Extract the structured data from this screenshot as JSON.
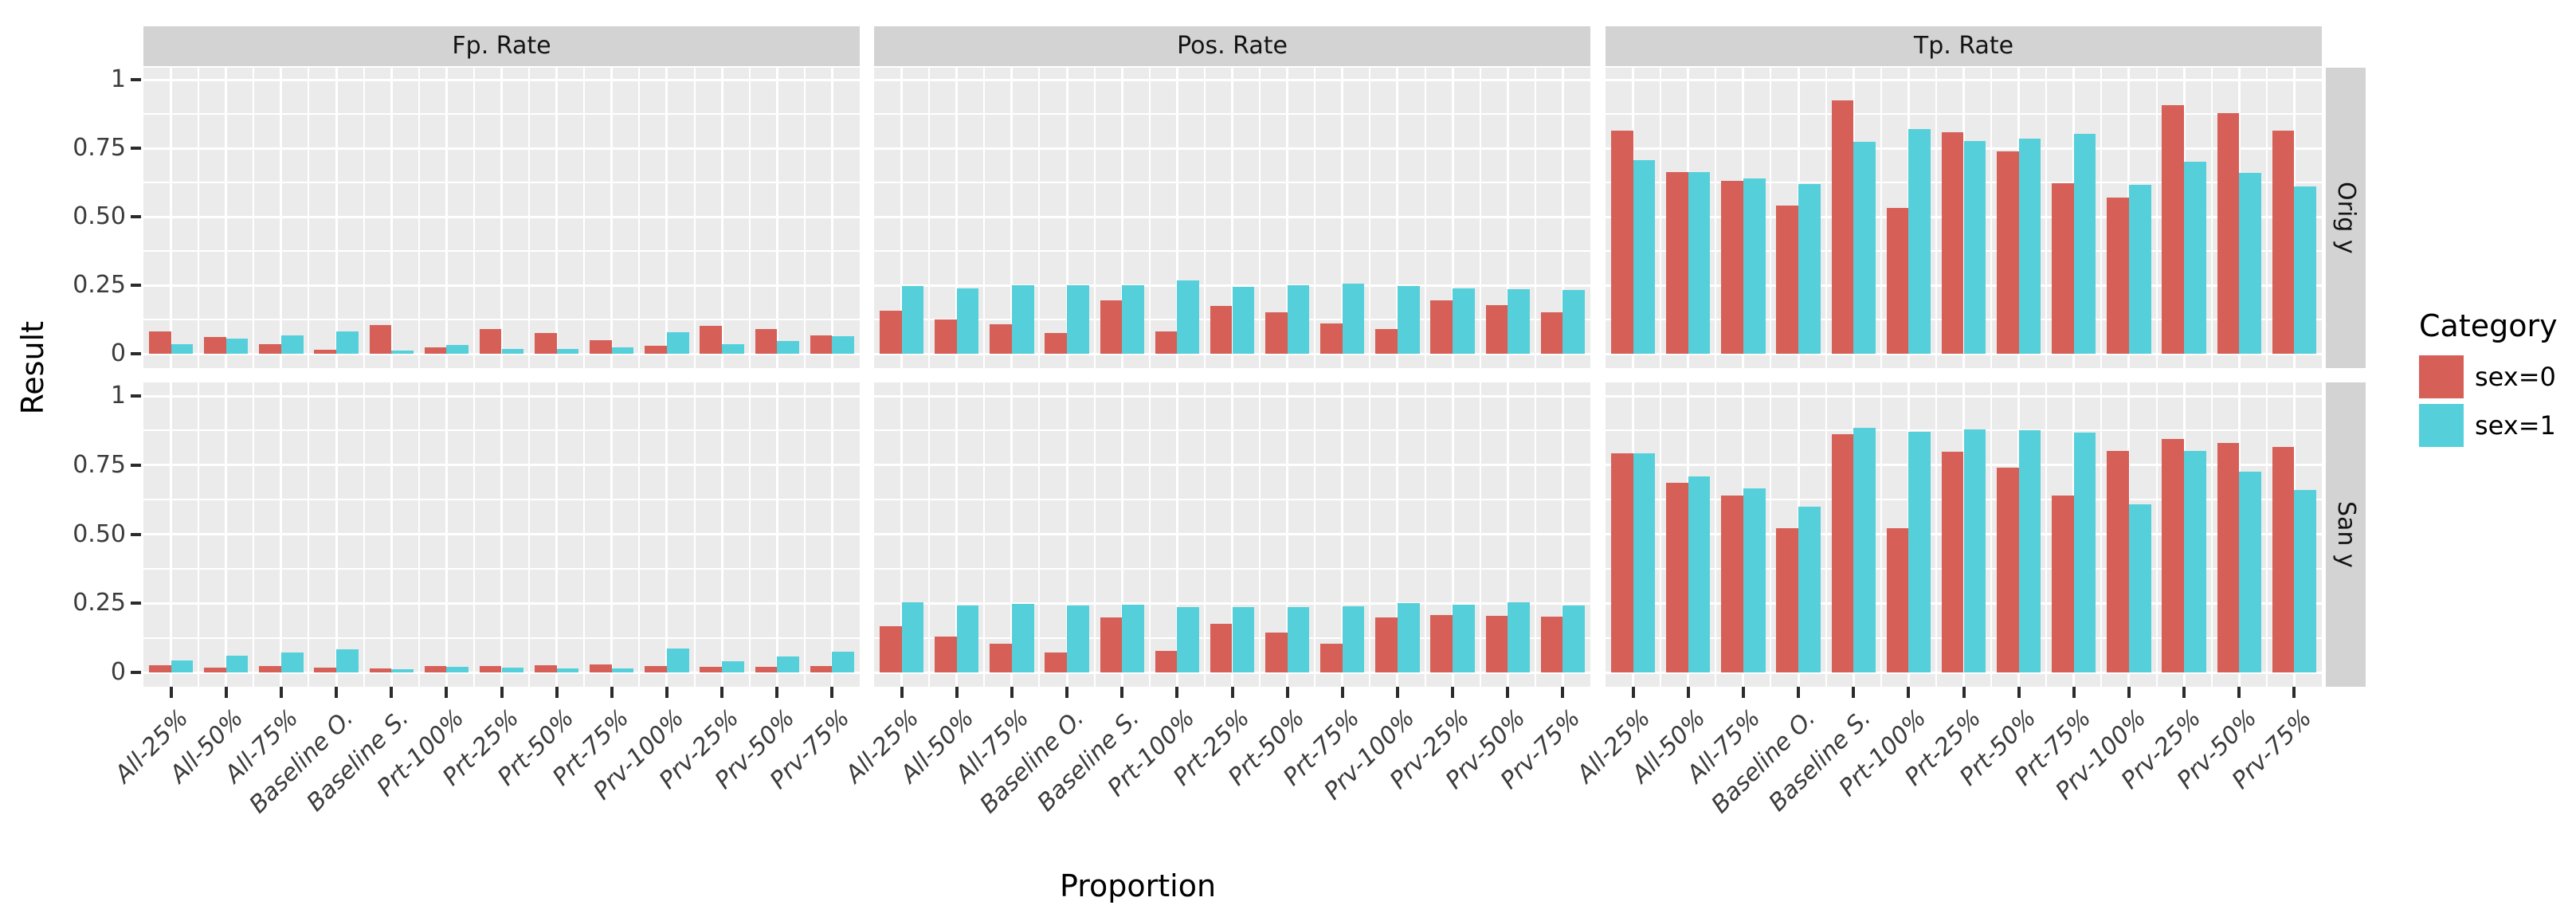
{
  "figure": {
    "y_axis_title": "Result",
    "x_axis_title": "Proportion",
    "y_ticks": [
      {
        "label": "1",
        "value": 1
      },
      {
        "label": "0.75",
        "value": 0.75
      },
      {
        "label": "0.50",
        "value": 0.5
      },
      {
        "label": "0.25",
        "value": 0.25
      },
      {
        "label": "0",
        "value": 0
      }
    ],
    "colors": {
      "sex0": "#D65F57",
      "sex1": "#55D0DA",
      "panel_bg": "#EBEBEB",
      "strip_bg": "#D3D3D3",
      "grid": "#FFFFFF"
    },
    "legend": {
      "title": "Category",
      "items": [
        {
          "label": "sex=0",
          "color": "#D65F57"
        },
        {
          "label": "sex=1",
          "color": "#55D0DA"
        }
      ]
    }
  },
  "chart_data": {
    "type": "bar",
    "title": "",
    "xlabel": "Proportion",
    "ylabel": "Result",
    "ylim": [
      0,
      1
    ],
    "grid": true,
    "legend_position": "right",
    "col_facets": [
      "Fp. Rate",
      "Pos. Rate",
      "Tp. Rate"
    ],
    "row_facets": [
      "Orig y",
      "San y"
    ],
    "categories": [
      "All-25%",
      "All-50%",
      "All-75%",
      "Baseline O.",
      "Baseline S.",
      "Prt-100%",
      "Prt-25%",
      "Prt-50%",
      "Prt-75%",
      "Prv-100%",
      "Prv-25%",
      "Prv-50%",
      "Prv-75%"
    ],
    "facets": [
      {
        "row": "Orig y",
        "col": "Fp. Rate",
        "series": [
          {
            "name": "sex=0",
            "values": [
              0.08,
              0.06,
              0.036,
              0.015,
              0.104,
              0.022,
              0.09,
              0.075,
              0.049,
              0.029,
              0.102,
              0.089,
              0.066
            ]
          },
          {
            "name": "sex=1",
            "values": [
              0.034,
              0.055,
              0.066,
              0.08,
              0.012,
              0.032,
              0.017,
              0.017,
              0.022,
              0.078,
              0.034,
              0.047,
              0.063
            ]
          }
        ]
      },
      {
        "row": "Orig y",
        "col": "Pos. Rate",
        "series": [
          {
            "name": "sex=0",
            "values": [
              0.157,
              0.124,
              0.107,
              0.075,
              0.194,
              0.08,
              0.174,
              0.152,
              0.11,
              0.089,
              0.194,
              0.177,
              0.152
            ]
          },
          {
            "name": "sex=1",
            "values": [
              0.247,
              0.237,
              0.249,
              0.249,
              0.249,
              0.268,
              0.245,
              0.249,
              0.257,
              0.247,
              0.237,
              0.235,
              0.232
            ]
          }
        ]
      },
      {
        "row": "Orig y",
        "col": "Tp. Rate",
        "series": [
          {
            "name": "sex=0",
            "values": [
              0.814,
              0.664,
              0.632,
              0.54,
              0.925,
              0.533,
              0.809,
              0.738,
              0.622,
              0.569,
              0.908,
              0.879,
              0.814
            ]
          },
          {
            "name": "sex=1",
            "values": [
              0.705,
              0.664,
              0.64,
              0.62,
              0.773,
              0.819,
              0.777,
              0.784,
              0.803,
              0.617,
              0.702,
              0.661,
              0.61
            ]
          }
        ]
      },
      {
        "row": "San y",
        "col": "Fp. Rate",
        "series": [
          {
            "name": "sex=0",
            "values": [
              0.025,
              0.018,
              0.023,
              0.018,
              0.014,
              0.022,
              0.023,
              0.027,
              0.03,
              0.022,
              0.021,
              0.019,
              0.023
            ]
          },
          {
            "name": "sex=1",
            "values": [
              0.042,
              0.06,
              0.072,
              0.083,
              0.011,
              0.019,
              0.016,
              0.014,
              0.014,
              0.086,
              0.039,
              0.058,
              0.075
            ]
          }
        ]
      },
      {
        "row": "San y",
        "col": "Pos. Rate",
        "series": [
          {
            "name": "sex=0",
            "values": [
              0.167,
              0.131,
              0.105,
              0.072,
              0.199,
              0.077,
              0.176,
              0.145,
              0.105,
              0.199,
              0.208,
              0.204,
              0.201
            ]
          },
          {
            "name": "sex=1",
            "values": [
              0.253,
              0.242,
              0.248,
              0.242,
              0.246,
              0.236,
              0.236,
              0.236,
              0.239,
              0.251,
              0.245,
              0.253,
              0.243
            ]
          }
        ]
      },
      {
        "row": "San y",
        "col": "Tp. Rate",
        "series": [
          {
            "name": "sex=0",
            "values": [
              0.793,
              0.686,
              0.64,
              0.521,
              0.861,
              0.521,
              0.799,
              0.74,
              0.641,
              0.8,
              0.845,
              0.83,
              0.817
            ]
          },
          {
            "name": "sex=1",
            "values": [
              0.793,
              0.709,
              0.667,
              0.599,
              0.885,
              0.869,
              0.88,
              0.877,
              0.868,
              0.607,
              0.8,
              0.726,
              0.66
            ]
          }
        ]
      }
    ]
  }
}
